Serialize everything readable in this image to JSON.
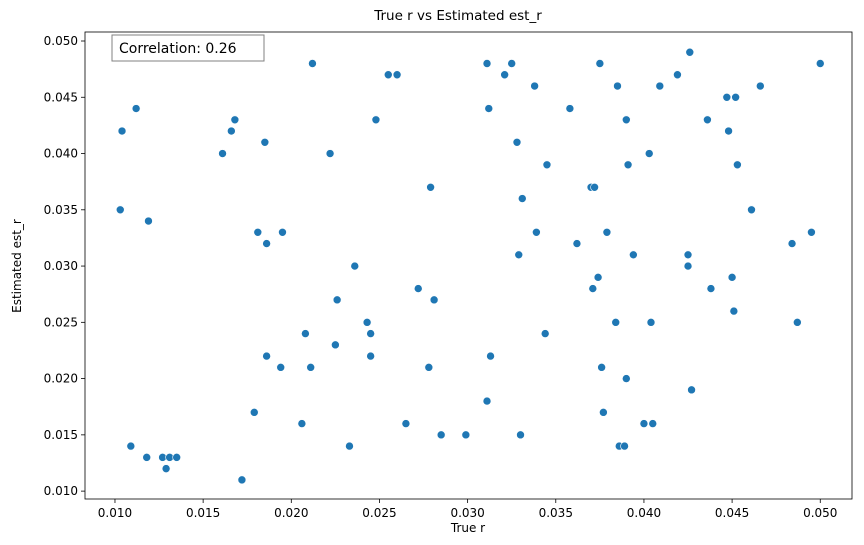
{
  "chart_data": {
    "type": "scatter",
    "title": "True r vs Estimated est_r",
    "xlabel": "True r",
    "ylabel": "Estimated est_r",
    "xlim": [
      0.0083,
      0.0518
    ],
    "ylim": [
      0.0093,
      0.0508
    ],
    "xticks": [
      0.01,
      0.015,
      0.02,
      0.025,
      0.03,
      0.035,
      0.04,
      0.045,
      0.05
    ],
    "xtick_labels": [
      "0.010",
      "0.015",
      "0.020",
      "0.025",
      "0.030",
      "0.035",
      "0.040",
      "0.045",
      "0.050"
    ],
    "yticks": [
      0.01,
      0.015,
      0.02,
      0.025,
      0.03,
      0.035,
      0.04,
      0.045,
      0.05
    ],
    "ytick_labels": [
      "0.010",
      "0.015",
      "0.020",
      "0.025",
      "0.030",
      "0.035",
      "0.040",
      "0.045",
      "0.050"
    ],
    "grid": false,
    "annotation": "Correlation: 0.26",
    "annotation_position": "top-left",
    "marker_color": "#1f77b4",
    "points": [
      {
        "x": 0.0104,
        "y": 0.042
      },
      {
        "x": 0.0103,
        "y": 0.035
      },
      {
        "x": 0.0109,
        "y": 0.014
      },
      {
        "x": 0.0112,
        "y": 0.044
      },
      {
        "x": 0.0118,
        "y": 0.013
      },
      {
        "x": 0.0119,
        "y": 0.034
      },
      {
        "x": 0.0127,
        "y": 0.013
      },
      {
        "x": 0.0129,
        "y": 0.012
      },
      {
        "x": 0.0131,
        "y": 0.013
      },
      {
        "x": 0.0135,
        "y": 0.013
      },
      {
        "x": 0.0161,
        "y": 0.04
      },
      {
        "x": 0.0166,
        "y": 0.042
      },
      {
        "x": 0.0168,
        "y": 0.043
      },
      {
        "x": 0.0172,
        "y": 0.011
      },
      {
        "x": 0.0179,
        "y": 0.017
      },
      {
        "x": 0.0181,
        "y": 0.033
      },
      {
        "x": 0.0185,
        "y": 0.041
      },
      {
        "x": 0.0186,
        "y": 0.032
      },
      {
        "x": 0.0186,
        "y": 0.022
      },
      {
        "x": 0.0194,
        "y": 0.021
      },
      {
        "x": 0.0195,
        "y": 0.033
      },
      {
        "x": 0.0206,
        "y": 0.016
      },
      {
        "x": 0.0208,
        "y": 0.024
      },
      {
        "x": 0.0211,
        "y": 0.021
      },
      {
        "x": 0.0212,
        "y": 0.048
      },
      {
        "x": 0.0222,
        "y": 0.04
      },
      {
        "x": 0.0225,
        "y": 0.023
      },
      {
        "x": 0.0226,
        "y": 0.027
      },
      {
        "x": 0.0233,
        "y": 0.014
      },
      {
        "x": 0.0236,
        "y": 0.03
      },
      {
        "x": 0.0243,
        "y": 0.025
      },
      {
        "x": 0.0245,
        "y": 0.024
      },
      {
        "x": 0.0245,
        "y": 0.022
      },
      {
        "x": 0.0248,
        "y": 0.043
      },
      {
        "x": 0.0255,
        "y": 0.047
      },
      {
        "x": 0.026,
        "y": 0.047
      },
      {
        "x": 0.0265,
        "y": 0.016
      },
      {
        "x": 0.0272,
        "y": 0.028
      },
      {
        "x": 0.0278,
        "y": 0.021
      },
      {
        "x": 0.0279,
        "y": 0.037
      },
      {
        "x": 0.0281,
        "y": 0.027
      },
      {
        "x": 0.0285,
        "y": 0.015
      },
      {
        "x": 0.0299,
        "y": 0.015
      },
      {
        "x": 0.0311,
        "y": 0.048
      },
      {
        "x": 0.0311,
        "y": 0.018
      },
      {
        "x": 0.0312,
        "y": 0.044
      },
      {
        "x": 0.0313,
        "y": 0.022
      },
      {
        "x": 0.0321,
        "y": 0.047
      },
      {
        "x": 0.0325,
        "y": 0.048
      },
      {
        "x": 0.0328,
        "y": 0.041
      },
      {
        "x": 0.0329,
        "y": 0.031
      },
      {
        "x": 0.033,
        "y": 0.015
      },
      {
        "x": 0.0331,
        "y": 0.036
      },
      {
        "x": 0.0338,
        "y": 0.046
      },
      {
        "x": 0.0339,
        "y": 0.033
      },
      {
        "x": 0.0344,
        "y": 0.024
      },
      {
        "x": 0.0345,
        "y": 0.039
      },
      {
        "x": 0.0358,
        "y": 0.044
      },
      {
        "x": 0.0362,
        "y": 0.032
      },
      {
        "x": 0.037,
        "y": 0.037
      },
      {
        "x": 0.0371,
        "y": 0.028
      },
      {
        "x": 0.0372,
        "y": 0.037
      },
      {
        "x": 0.0374,
        "y": 0.029
      },
      {
        "x": 0.0375,
        "y": 0.048
      },
      {
        "x": 0.0376,
        "y": 0.021
      },
      {
        "x": 0.0377,
        "y": 0.017
      },
      {
        "x": 0.0379,
        "y": 0.033
      },
      {
        "x": 0.0384,
        "y": 0.025
      },
      {
        "x": 0.0385,
        "y": 0.046
      },
      {
        "x": 0.0386,
        "y": 0.014
      },
      {
        "x": 0.0389,
        "y": 0.014
      },
      {
        "x": 0.039,
        "y": 0.043
      },
      {
        "x": 0.039,
        "y": 0.02
      },
      {
        "x": 0.0391,
        "y": 0.039
      },
      {
        "x": 0.0394,
        "y": 0.031
      },
      {
        "x": 0.04,
        "y": 0.016
      },
      {
        "x": 0.0403,
        "y": 0.04
      },
      {
        "x": 0.0404,
        "y": 0.025
      },
      {
        "x": 0.0405,
        "y": 0.016
      },
      {
        "x": 0.0409,
        "y": 0.046
      },
      {
        "x": 0.0419,
        "y": 0.047
      },
      {
        "x": 0.0425,
        "y": 0.031
      },
      {
        "x": 0.0425,
        "y": 0.03
      },
      {
        "x": 0.0426,
        "y": 0.049
      },
      {
        "x": 0.0427,
        "y": 0.019
      },
      {
        "x": 0.0436,
        "y": 0.043
      },
      {
        "x": 0.0438,
        "y": 0.028
      },
      {
        "x": 0.0447,
        "y": 0.045
      },
      {
        "x": 0.0448,
        "y": 0.042
      },
      {
        "x": 0.045,
        "y": 0.029
      },
      {
        "x": 0.0451,
        "y": 0.026
      },
      {
        "x": 0.0452,
        "y": 0.045
      },
      {
        "x": 0.0453,
        "y": 0.039
      },
      {
        "x": 0.0461,
        "y": 0.035
      },
      {
        "x": 0.0466,
        "y": 0.046
      },
      {
        "x": 0.0484,
        "y": 0.032
      },
      {
        "x": 0.0487,
        "y": 0.025
      },
      {
        "x": 0.0495,
        "y": 0.033
      },
      {
        "x": 0.05,
        "y": 0.048
      }
    ]
  }
}
